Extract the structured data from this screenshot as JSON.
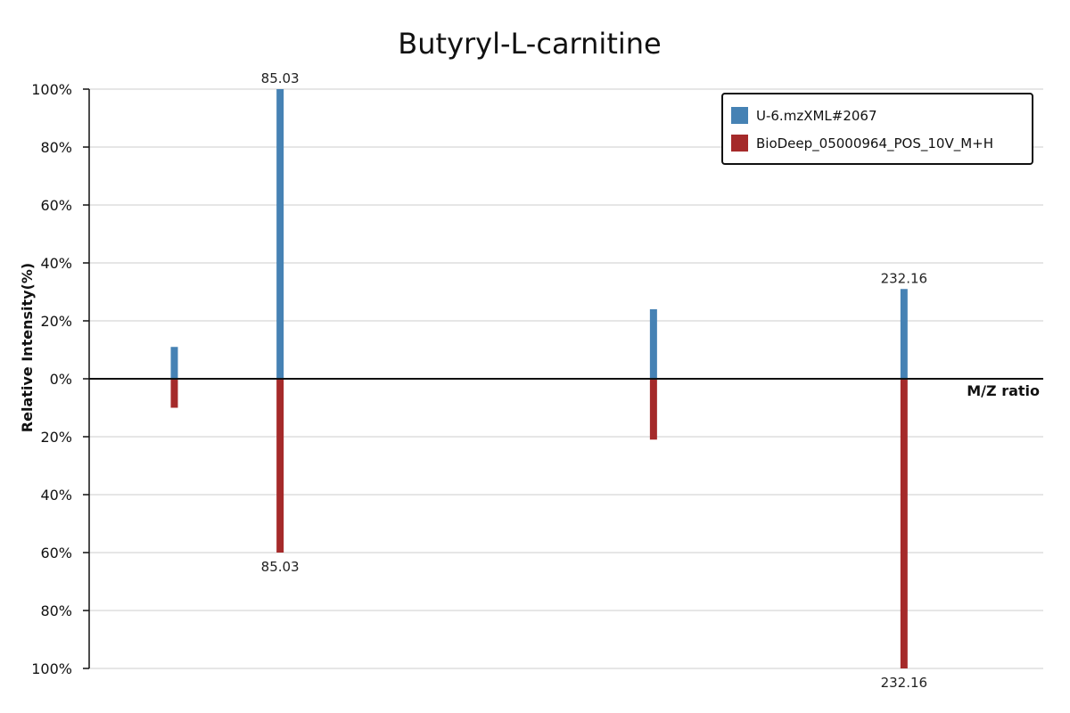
{
  "chart_data": {
    "type": "bar",
    "title": "Butyryl-L-carnitine",
    "xlabel": "M/Z ratio",
    "ylabel": "Relative Intensity(%)",
    "ylim": [
      -100,
      100
    ],
    "y_ticks": [
      {
        "value": 100,
        "label": "100%"
      },
      {
        "value": 80,
        "label": "80%"
      },
      {
        "value": 60,
        "label": "60%"
      },
      {
        "value": 40,
        "label": "40%"
      },
      {
        "value": 20,
        "label": "20%"
      },
      {
        "value": 0,
        "label": "0%"
      },
      {
        "value": -20,
        "label": "20%"
      },
      {
        "value": -40,
        "label": "40%"
      },
      {
        "value": -60,
        "label": "60%"
      },
      {
        "value": -80,
        "label": "80%"
      },
      {
        "value": -100,
        "label": "100%"
      }
    ],
    "grid": true,
    "legend_position": "top-right",
    "series": [
      {
        "name": "U-6.mzXML#2067",
        "color": "#4682b4",
        "direction": "up",
        "peaks": [
          {
            "mz": 60.08,
            "intensity": 11,
            "label": ""
          },
          {
            "mz": 85.03,
            "intensity": 100,
            "label": "85.03"
          },
          {
            "mz": 173.08,
            "intensity": 24,
            "label": ""
          },
          {
            "mz": 232.16,
            "intensity": 31,
            "label": "232.16"
          }
        ]
      },
      {
        "name": "BioDeep_05000964_POS_10V_M+H",
        "color": "#a52a2a",
        "direction": "down",
        "peaks": [
          {
            "mz": 60.08,
            "intensity": 10,
            "label": ""
          },
          {
            "mz": 85.03,
            "intensity": 60,
            "label": "85.03"
          },
          {
            "mz": 173.08,
            "intensity": 21,
            "label": ""
          },
          {
            "mz": 232.16,
            "intensity": 100,
            "label": "232.16"
          }
        ]
      }
    ]
  }
}
